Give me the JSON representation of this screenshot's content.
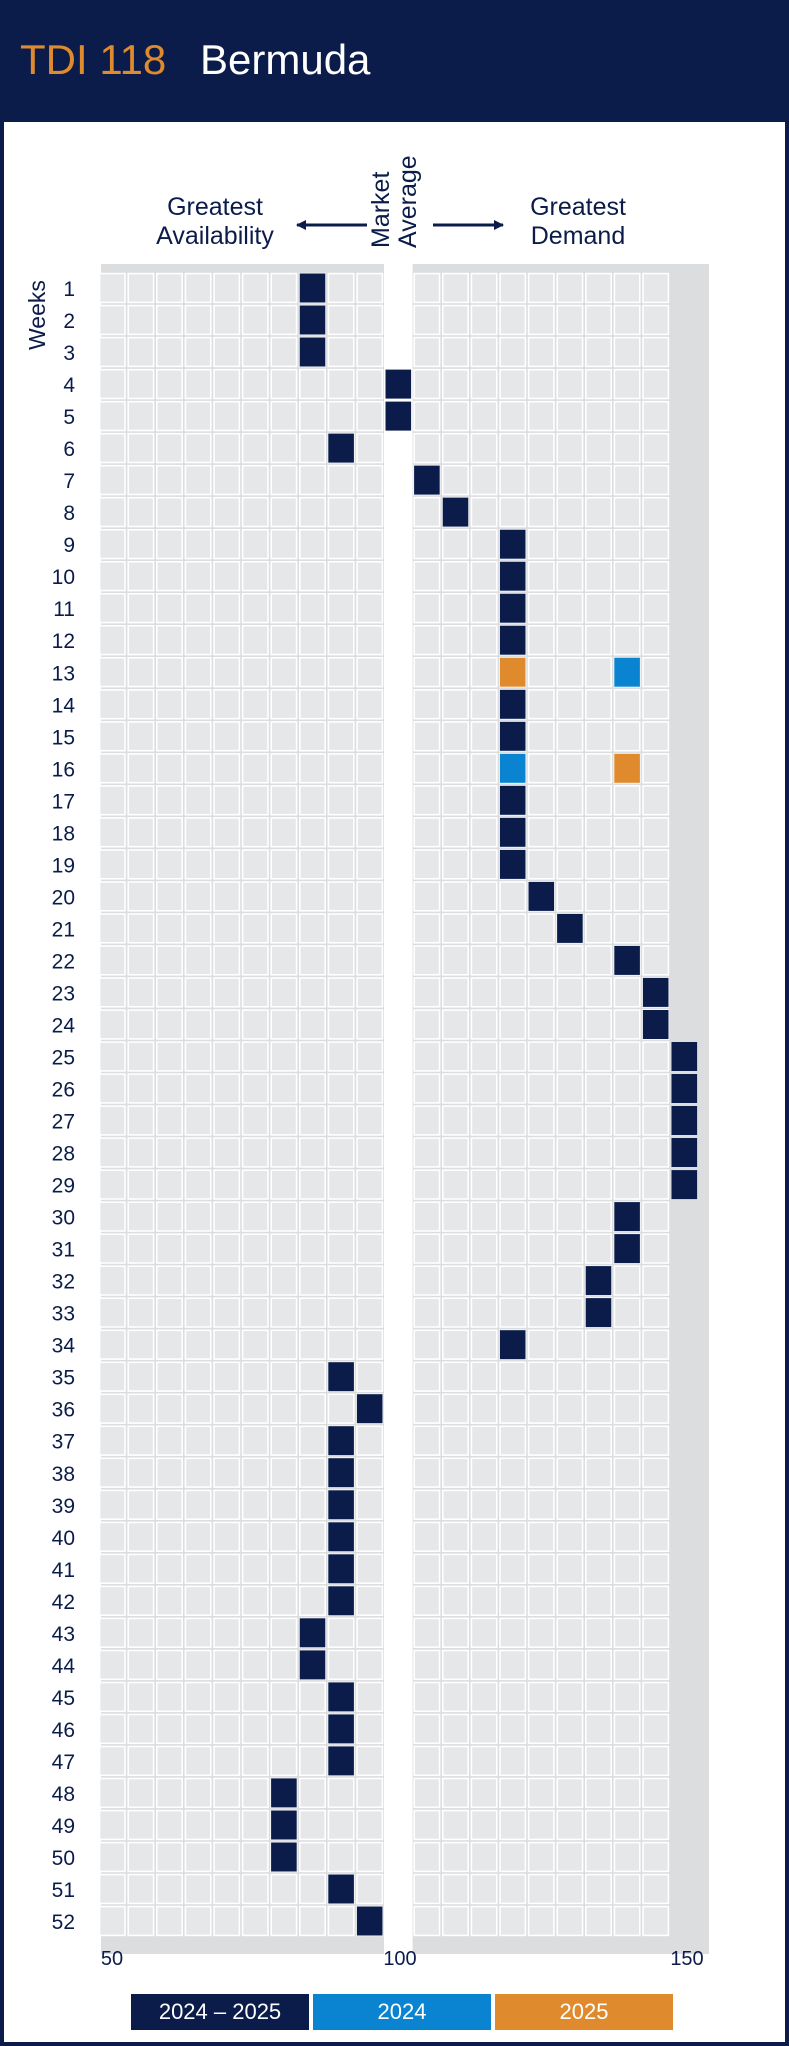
{
  "header": {
    "code": "TDI 118",
    "name": "Bermuda"
  },
  "labels": {
    "left": [
      "Greatest",
      "Availability"
    ],
    "right": [
      "Greatest",
      "Demand"
    ],
    "market": [
      "Market",
      "Average"
    ],
    "weeks": "Weeks"
  },
  "colors": {
    "navy": "#0b1c4a",
    "blue": "#0a84d0",
    "orange": "#e08a2e",
    "grid": "#d8d9dc",
    "gridbg": "#dcdddf"
  },
  "chart_data": {
    "type": "scatter",
    "title": "TDI 118 Bermuda",
    "xlabel": "",
    "ylabel": "Weeks",
    "xlim": [
      50,
      150
    ],
    "xticks": [
      "50",
      "100",
      "150"
    ],
    "weeks": [
      1,
      2,
      3,
      4,
      5,
      6,
      7,
      8,
      9,
      10,
      11,
      12,
      13,
      14,
      15,
      16,
      17,
      18,
      19,
      20,
      21,
      22,
      23,
      24,
      25,
      26,
      27,
      28,
      29,
      30,
      31,
      32,
      33,
      34,
      35,
      36,
      37,
      38,
      39,
      40,
      41,
      42,
      43,
      44,
      45,
      46,
      47,
      48,
      49,
      50,
      51,
      52
    ],
    "series": [
      {
        "name": "2024 – 2025",
        "values": [
          85,
          85,
          85,
          100,
          100,
          90,
          105,
          110,
          120,
          120,
          120,
          120,
          null,
          120,
          120,
          null,
          120,
          120,
          120,
          125,
          130,
          140,
          145,
          145,
          150,
          150,
          150,
          150,
          150,
          140,
          140,
          135,
          135,
          120,
          90,
          95,
          90,
          90,
          90,
          90,
          90,
          90,
          85,
          85,
          90,
          90,
          90,
          80,
          80,
          80,
          90,
          95
        ]
      },
      {
        "name": "2024",
        "points": [
          {
            "week": 13,
            "value": 140
          },
          {
            "week": 16,
            "value": 120
          }
        ]
      },
      {
        "name": "2025",
        "points": [
          {
            "week": 13,
            "value": 120
          },
          {
            "week": 16,
            "value": 140
          }
        ]
      }
    ],
    "legend": {
      "placement": "bottom",
      "items": [
        "2024 – 2025",
        "2024",
        "2025"
      ]
    }
  }
}
